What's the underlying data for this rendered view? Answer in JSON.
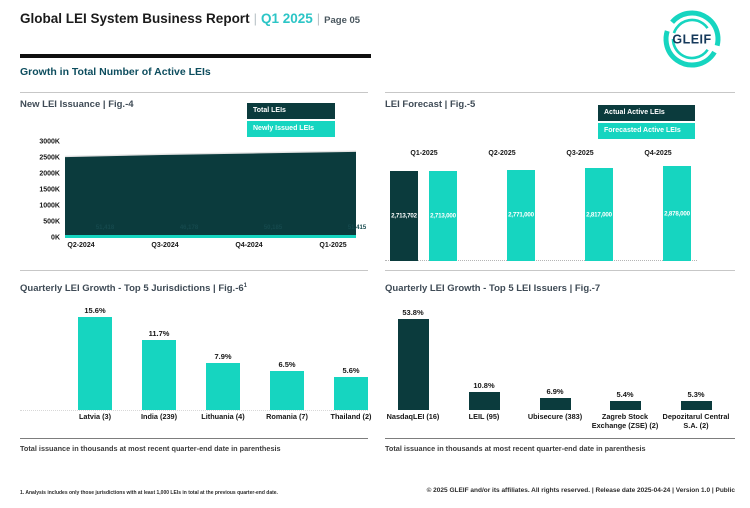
{
  "page": {
    "title": "Global LEI System Business Report",
    "quarter": "Q1 2025",
    "page_label": "Page 05",
    "separator": "|",
    "section_title": "Growth in Total Number of Active LEIs",
    "logo_text": "GLEIF"
  },
  "colors": {
    "teal": "#16D5C0",
    "dark": "#0B3B3D",
    "header_accent": "#2CC5C6",
    "logo_text_color": "#15395B"
  },
  "footer": {
    "footnote": "1. Analysis includes only those jurisdictions with at least 1,000 LEIs in total at the previous quarter-end date.",
    "copyright": "© 2025 GLEIF and/or its affiliates. All rights reserved. | Release date 2025-04-24 | Version 1.0 | Public"
  },
  "chart_data": [
    {
      "id": "fig4",
      "type": "area",
      "title": "New LEI Issuance | Fig.-4",
      "legend": [
        "Total LEIs",
        "Newly Issued LEIs"
      ],
      "x": [
        "Q2-2024",
        "Q3-2024",
        "Q4-2024",
        "Q1-2025"
      ],
      "series": [
        {
          "name": "Total LEIs",
          "values": [
            2550000,
            2615000,
            2665000,
            2713702
          ]
        },
        {
          "name": "Newly Issued LEIs",
          "values": [
            51418,
            46178,
            50185,
            51415
          ]
        }
      ],
      "inside_labels": [
        "51,418",
        "46,178",
        "50,185",
        "51,415"
      ],
      "yticks": [
        "0K",
        "500K",
        "1000K",
        "1500K",
        "2000K",
        "2500K",
        "3000K"
      ],
      "ylim": [
        0,
        3000000
      ],
      "legend_position": "top-right",
      "grid": false
    },
    {
      "id": "fig5",
      "type": "bar",
      "title": "LEI Forecast | Fig.-5",
      "legend": [
        "Actual Active LEIs",
        "Forecasted Active LEIs"
      ],
      "categories": [
        "Q1-2025",
        "Q2-2025",
        "Q3-2025",
        "Q4-2025"
      ],
      "series": [
        {
          "name": "Actual Active LEIs",
          "values": [
            2713702,
            null,
            null,
            null
          ]
        },
        {
          "name": "Forecasted Active LEIs",
          "values": [
            2713000,
            2771000,
            2817000,
            2878000
          ]
        }
      ],
      "bar_labels": {
        "actual": [
          "2,713,702"
        ],
        "forecast": [
          "2,713,000",
          "2,771,000",
          "2,817,000",
          "2,878,000"
        ]
      },
      "legend_position": "top-right",
      "grid": false
    },
    {
      "id": "fig6",
      "type": "bar",
      "title": "Quarterly LEI Growth - Top 5 Jurisdictions | Fig.-6",
      "title_superscript": "1",
      "categories": [
        "Latvia (3)",
        "India (239)",
        "Lithuania (4)",
        "Romania (7)",
        "Thailand (2)"
      ],
      "values": [
        15.6,
        11.7,
        7.9,
        6.5,
        5.6
      ],
      "labels": [
        "15.6%",
        "11.7%",
        "7.9%",
        "6.5%",
        "5.6%"
      ],
      "note": "Total issuance in thousands at most recent quarter-end date in parenthesis",
      "grid": false
    },
    {
      "id": "fig7",
      "type": "bar",
      "title": "Quarterly LEI Growth - Top 5 LEI Issuers | Fig.-7",
      "categories": [
        "NasdaqLEI (16)",
        "LEIL (95)",
        "Ubisecure (383)",
        "Zagreb Stock Exchange (ZSE) (2)",
        "Depozitarul Central S.A. (2)"
      ],
      "values": [
        53.8,
        10.8,
        6.9,
        5.4,
        5.3
      ],
      "labels": [
        "53.8%",
        "10.8%",
        "6.9%",
        "5.4%",
        "5.3%"
      ],
      "note": "Total issuance in thousands at most recent quarter-end date in parenthesis",
      "grid": false
    }
  ]
}
